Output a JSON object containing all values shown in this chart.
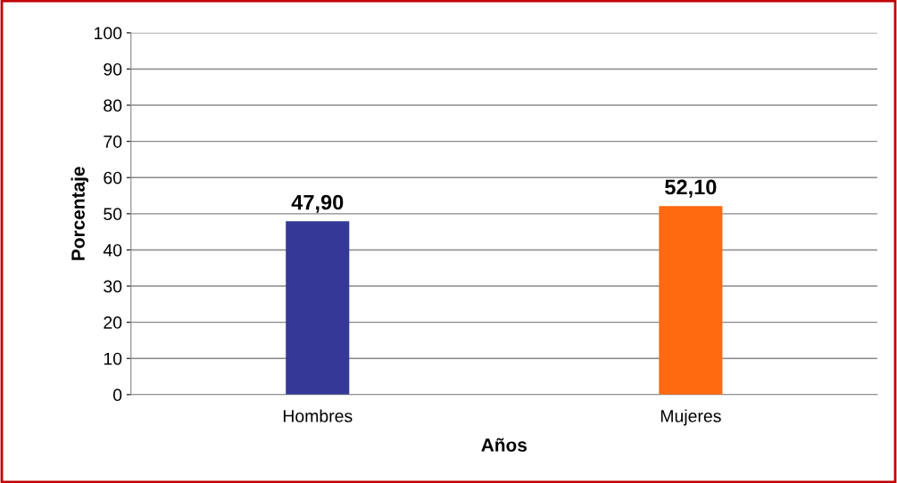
{
  "chart_data": {
    "type": "bar",
    "xlabel": "Años",
    "ylabel": "Porcentaje",
    "categories": [
      "Hombres",
      "Mujeres"
    ],
    "values": [
      47.9,
      52.1
    ],
    "colors": [
      "#363896",
      "#ff6a10"
    ],
    "value_labels": [
      "47,90",
      "52,10"
    ],
    "ylim": [
      0,
      100
    ],
    "yticks": [
      0,
      10,
      20,
      30,
      40,
      50,
      60,
      70,
      80,
      90,
      100
    ],
    "grid": "y"
  }
}
